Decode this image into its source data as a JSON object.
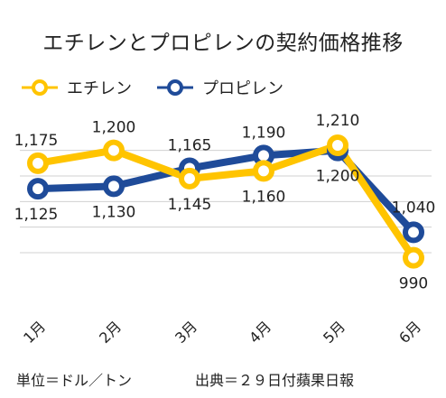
{
  "chart_data": {
    "type": "line",
    "title": "エチレンとプロピレンの契約価格推移",
    "categories": [
      "1月",
      "2月",
      "3月",
      "4月",
      "5月",
      "6月"
    ],
    "series": [
      {
        "name": "エチレン",
        "color": "#FFC400",
        "values": [
          1175,
          1200,
          1145,
          1160,
          1210,
          990
        ],
        "labels": [
          "1,175",
          "1,200",
          "1,145",
          "1,160",
          "1,210",
          "990"
        ]
      },
      {
        "name": "プロピレン",
        "color": "#1F4B99",
        "values": [
          1125,
          1130,
          1165,
          1190,
          1200,
          1040
        ],
        "labels": [
          "1,125",
          "1,130",
          "1,165",
          "1,190",
          "1,200",
          "1,040"
        ]
      }
    ],
    "grid": true,
    "legend_position": "top-left"
  },
  "footer": {
    "unit": "単位＝ドル／トン",
    "source": "出典＝２９日付蘋果日報"
  }
}
